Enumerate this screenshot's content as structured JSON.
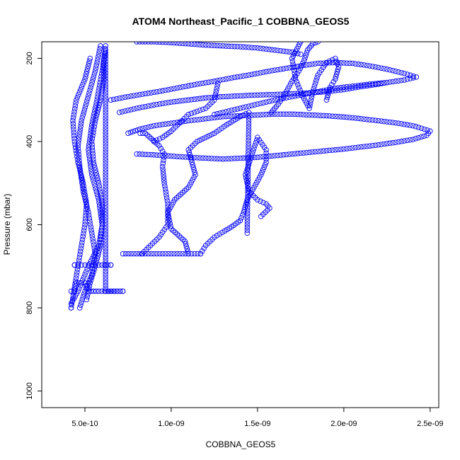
{
  "chart_data": {
    "type": "scatter",
    "title": "ATOM4 Northeast_Pacific_1 COBBNA_GEOS5",
    "xlabel": "COBBNA_GEOS5",
    "ylabel": "Pressure (mbar)",
    "xlim": [
      2.5e-10,
      2.55e-09
    ],
    "ylim": [
      1040,
      160
    ],
    "y_reversed": true,
    "grid": false,
    "legend": "none",
    "x_ticks": [
      {
        "value": 5e-10,
        "label": "5.0e-10"
      },
      {
        "value": 1e-09,
        "label": "1.0e-09"
      },
      {
        "value": 1.5e-09,
        "label": "1.5e-09"
      },
      {
        "value": 2e-09,
        "label": "2.0e-09"
      },
      {
        "value": 2.5e-09,
        "label": "2.5e-09"
      }
    ],
    "y_ticks": [
      {
        "value": 200,
        "label": "200"
      },
      {
        "value": 400,
        "label": "400"
      },
      {
        "value": 600,
        "label": "600"
      },
      {
        "value": 800,
        "label": "800"
      },
      {
        "value": 1000,
        "label": "1000"
      }
    ],
    "marker": "open-circle",
    "color": "#0000ff",
    "series": [
      {
        "x": [
          4.2e-10,
          4.2e-10,
          4.6e-10,
          4.8e-10,
          5.2e-10,
          5.8e-10,
          6e-10,
          6e-10,
          5.8e-10,
          5.5e-10,
          5.4e-10,
          5.6e-10,
          5.9e-10,
          6.1e-10,
          6.1e-10,
          6.2e-10,
          6.2e-10,
          7.2e-10
        ],
        "y": [
          800,
          790,
          760,
          740,
          700,
          650,
          600,
          550,
          500,
          450,
          400,
          350,
          300,
          250,
          210,
          180,
          760,
          760
        ]
      },
      {
        "x": [
          5.3e-10,
          5e-10,
          4.5e-10,
          4.3e-10,
          4.4e-10,
          4.6e-10,
          4.9e-10,
          5.1e-10,
          5e-10,
          4.8e-10,
          4.6e-10,
          4.4e-10,
          4.2e-10
        ],
        "y": [
          200,
          250,
          300,
          350,
          400,
          450,
          500,
          550,
          600,
          650,
          700,
          750,
          800
        ]
      },
      {
        "x": [
          5.9e-10,
          5.6e-10,
          5.2e-10,
          4.8e-10,
          4.6e-10,
          4.7e-10,
          4.9e-10,
          5.2e-10,
          5.4e-10,
          5.6e-10,
          5.4e-10,
          5e-10,
          4.7e-10
        ],
        "y": [
          170,
          230,
          290,
          350,
          410,
          460,
          520,
          570,
          620,
          670,
          720,
          760,
          800
        ]
      },
      {
        "x": [
          6.2e-10,
          6e-10,
          5.7e-10,
          5.4e-10,
          5.2e-10,
          5.4e-10,
          5.8e-10,
          6e-10,
          5.9e-10,
          5.6e-10,
          5.3e-10,
          5.1e-10
        ],
        "y": [
          170,
          230,
          300,
          360,
          420,
          480,
          540,
          600,
          650,
          700,
          740,
          780
        ]
      },
      {
        "x": [
          4.4e-10,
          4.4e-10,
          4.6e-10,
          5e-10,
          5.4e-10,
          5.8e-10,
          6.5e-10,
          6.5e-10
        ],
        "y": [
          697,
          697,
          697,
          697,
          697,
          697,
          697,
          697
        ]
      },
      {
        "x": [
          4.2e-10,
          4.4e-10,
          4.5e-10,
          4.8e-10,
          5e-10,
          5.2e-10,
          5.5e-10,
          5.8e-10,
          6.5e-10,
          7.2e-10
        ],
        "y": [
          760,
          760,
          740,
          740,
          740,
          760,
          760,
          760,
          760,
          760
        ]
      },
      {
        "x": [
          7.2e-10,
          8e-10,
          9e-10,
          1e-09,
          1.1e-09,
          1.17e-09
        ],
        "y": [
          670,
          670,
          670,
          670,
          670,
          670
        ]
      },
      {
        "x": [
          8.3e-10,
          8.8e-10,
          9.3e-10,
          9.8e-10,
          9.8e-10,
          9.6e-10,
          9.5e-10,
          9.6e-10,
          9.3e-10,
          8.5e-10,
          8.2e-10
        ],
        "y": [
          670,
          650,
          630,
          600,
          550,
          500,
          460,
          430,
          410,
          380,
          380
        ]
      },
      {
        "x": [
          1.17e-09,
          1.2e-09,
          1.25e-09,
          1.31e-09,
          1.35e-09,
          1.4e-09,
          1.42e-09,
          1.44e-09,
          1.48e-09,
          1.52e-09,
          1.55e-09,
          1.55e-09,
          1.5e-09,
          1.43e-09,
          1.45e-09,
          1.5e-09,
          1.55e-09,
          1.57e-09,
          1.52e-09
        ],
        "y": [
          670,
          650,
          630,
          615,
          605,
          590,
          570,
          540,
          510,
          480,
          450,
          420,
          390,
          480,
          520,
          540,
          550,
          560,
          580
        ]
      },
      {
        "x": [
          1.1e-09,
          1.08e-09,
          1e-09,
          9.8e-10,
          1.02e-09,
          1.1e-09,
          1.14e-09,
          1.12e-09,
          1.1e-09,
          1.15e-09,
          1.25e-09,
          1.32e-09,
          1.4e-09,
          1.45e-09,
          1.44e-09
        ],
        "y": [
          670,
          640,
          610,
          570,
          540,
          510,
          480,
          450,
          420,
          400,
          380,
          360,
          340,
          330,
          620
        ]
      },
      {
        "x": [
          7.5e-10,
          8.2e-10,
          9e-10,
          1e-09,
          1.1e-09,
          1.2e-09,
          1.3e-09,
          1.4e-09,
          1.5e-09,
          1.6e-09,
          1.7e-09,
          1.8e-09,
          1.9e-09,
          2e-09,
          2.1e-09,
          2.2e-09,
          2.3e-09,
          2.4e-09,
          2.45e-09,
          2.5e-09,
          2.48e-09,
          2.4e-09,
          2.3e-09,
          2.2e-09,
          2.1e-09,
          2e-09,
          1.9e-09,
          1.8e-09,
          1.7e-09,
          1.6e-09,
          1.5e-09,
          1.4e-09,
          1.3e-09,
          1.2e-09,
          1.1e-09,
          1e-09,
          9e-10,
          8e-10
        ],
        "y": [
          380,
          370,
          362,
          356,
          350,
          345,
          340,
          338,
          336,
          334,
          334,
          336,
          338,
          341,
          345,
          350,
          355,
          362,
          368,
          375,
          385,
          395,
          402,
          408,
          413,
          418,
          422,
          426,
          430,
          434,
          438,
          440,
          442,
          440,
          438,
          435,
          432,
          430
        ]
      },
      {
        "x": [
          6.5e-10,
          7.5e-10,
          8.5e-10,
          9.5e-10,
          1.05e-09,
          1.15e-09,
          1.25e-09,
          1.35e-09,
          1.45e-09,
          1.55e-09,
          1.65e-09,
          1.75e-09,
          1.85e-09,
          1.95e-09,
          2.05e-09,
          2.15e-09,
          2.25e-09,
          2.35e-09,
          2.42e-09,
          2.35e-09,
          2.25e-09,
          2.15e-09,
          2.05e-09,
          1.95e-09,
          1.85e-09,
          1.75e-09,
          1.65e-09,
          1.55e-09,
          1.45e-09,
          1.35e-09,
          1.25e-09
        ],
        "y": [
          300,
          292,
          285,
          278,
          270,
          262,
          255,
          247,
          240,
          232,
          225,
          218,
          212,
          210,
          212,
          218,
          226,
          236,
          245,
          252,
          258,
          262,
          267,
          272,
          280,
          288,
          296,
          305,
          315,
          325,
          335
        ]
      },
      {
        "x": [
          7e-10,
          8e-10,
          9e-10,
          1e-09,
          1.1e-09,
          1.2e-09,
          1.3e-09,
          1.4e-09,
          1.5e-09,
          1.6e-09,
          1.7e-09,
          1.8e-09,
          1.9e-09,
          2e-09,
          2.1e-09,
          2.2e-09,
          2.25e-09
        ],
        "y": [
          330,
          320,
          312,
          305,
          300,
          295,
          292,
          290,
          288,
          287,
          285,
          283,
          280,
          275,
          268,
          262,
          258
        ]
      },
      {
        "x": [
          8e-10,
          9e-10,
          1e-09,
          1.1e-09,
          1.2e-09,
          1.3e-09,
          1.4e-09,
          1.5e-09,
          1.6e-09,
          1.7e-09,
          1.75e-09
        ],
        "y": [
          160,
          160,
          162,
          165,
          168,
          170,
          172,
          175,
          180,
          185,
          190
        ]
      },
      {
        "x": [
          1.75e-09,
          1.7e-09,
          1.72e-09,
          1.76e-09,
          1.8e-09,
          1.82e-09,
          1.85e-09,
          1.9e-09,
          1.95e-09,
          1.97e-09,
          1.95e-09,
          1.92e-09,
          1.9e-09
        ],
        "y": [
          160,
          200,
          250,
          290,
          320,
          280,
          240,
          210,
          200,
          220,
          250,
          270,
          300
        ]
      },
      {
        "x": [
          1.58e-09,
          1.62e-09,
          1.66e-09,
          1.7e-09,
          1.74e-09,
          1.77e-09,
          1.79e-09,
          1.82e-09,
          1.85e-09
        ],
        "y": [
          330,
          310,
          285,
          255,
          230,
          205,
          180,
          165,
          160
        ]
      },
      {
        "x": [
          9e-10,
          9.5e-10,
          1e-09,
          1.05e-09,
          1.1e-09,
          1.2e-09,
          1.25e-09,
          1.27e-09
        ],
        "y": [
          400,
          390,
          375,
          355,
          335,
          320,
          300,
          260
        ]
      }
    ]
  }
}
